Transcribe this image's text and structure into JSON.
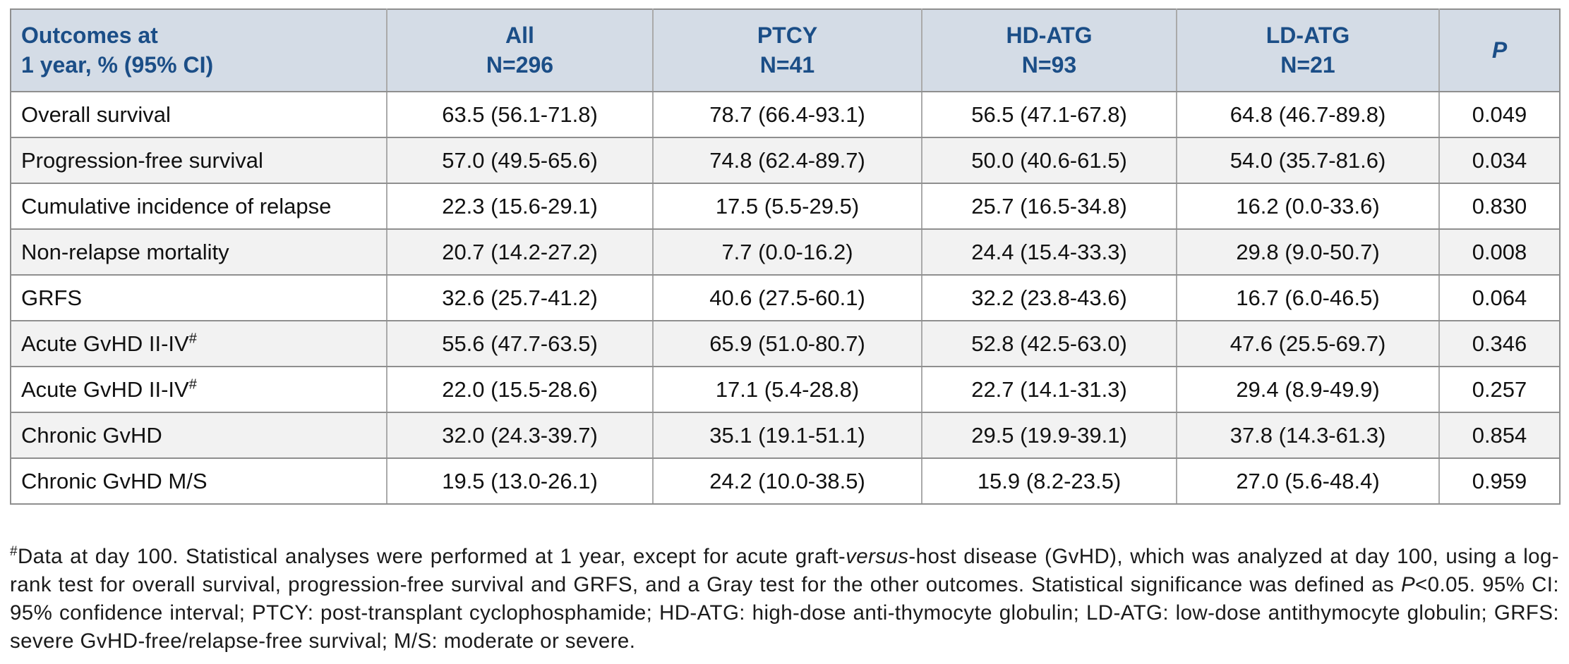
{
  "table": {
    "header": {
      "outcomes_line1": "Outcomes at",
      "outcomes_line2": "1 year, % (95% CI)",
      "cols": [
        {
          "label": "All",
          "n": "N=296"
        },
        {
          "label": "PTCY",
          "n": "N=41"
        },
        {
          "label": "HD-ATG",
          "n": "N=93"
        },
        {
          "label": "LD-ATG",
          "n": "N=21"
        }
      ],
      "p_label": "P"
    },
    "rows": [
      {
        "outcome": "Overall survival",
        "sup": "",
        "values": [
          "63.5 (56.1-71.8)",
          "78.7 (66.4-93.1)",
          "56.5 (47.1-67.8)",
          "64.8 (46.7-89.8)"
        ],
        "p": "0.049"
      },
      {
        "outcome": "Progression-free survival",
        "sup": "",
        "values": [
          "57.0 (49.5-65.6)",
          "74.8 (62.4-89.7)",
          "50.0 (40.6-61.5)",
          "54.0 (35.7-81.6)"
        ],
        "p": "0.034"
      },
      {
        "outcome": "Cumulative incidence of relapse",
        "sup": "",
        "values": [
          "22.3 (15.6-29.1)",
          "17.5 (5.5-29.5)",
          "25.7 (16.5-34.8)",
          "16.2 (0.0-33.6)"
        ],
        "p": "0.830"
      },
      {
        "outcome": "Non-relapse mortality",
        "sup": "",
        "values": [
          "20.7 (14.2-27.2)",
          "7.7 (0.0-16.2)",
          "24.4 (15.4-33.3)",
          "29.8 (9.0-50.7)"
        ],
        "p": "0.008"
      },
      {
        "outcome": "GRFS",
        "sup": "",
        "values": [
          "32.6 (25.7-41.2)",
          "40.6 (27.5-60.1)",
          "32.2 (23.8-43.6)",
          "16.7 (6.0-46.5)"
        ],
        "p": "0.064"
      },
      {
        "outcome": "Acute GvHD II-IV",
        "sup": "#",
        "values": [
          "55.6 (47.7-63.5)",
          "65.9 (51.0-80.7)",
          "52.8 (42.5-63.0)",
          "47.6 (25.5-69.7)"
        ],
        "p": "0.346"
      },
      {
        "outcome": "Acute GvHD II-IV",
        "sup": "#",
        "values": [
          "22.0 (15.5-28.6)",
          "17.1 (5.4-28.8)",
          "22.7 (14.1-31.3)",
          "29.4 (8.9-49.9)"
        ],
        "p": "0.257"
      },
      {
        "outcome": "Chronic GvHD",
        "sup": "",
        "values": [
          "32.0 (24.3-39.7)",
          "35.1 (19.1-51.1)",
          "29.5 (19.9-39.1)",
          "37.8 (14.3-61.3)"
        ],
        "p": "0.854"
      },
      {
        "outcome": "Chronic GvHD M/S",
        "sup": "",
        "values": [
          "19.5 (13.0-26.1)",
          "24.2 (10.0-38.5)",
          "15.9 (8.2-23.5)",
          "27.0 (5.6-48.4)"
        ],
        "p": "0.959"
      }
    ]
  },
  "footnote": {
    "segments": [
      {
        "text": "#",
        "sup": true
      },
      {
        "text": "Data at day 100. Statistical analyses were performed at 1 year, except for acute graft-"
      },
      {
        "text": "versus",
        "italic": true
      },
      {
        "text": "-host disease (GvHD), which was analyzed at day 100, using a log-rank test for overall survival, progression-free survival and GRFS, and a Gray test for the other outcomes. Statistical significance was defined as "
      },
      {
        "text": "P",
        "italic": true
      },
      {
        "text": "<0.05. 95% CI: 95% confidence interval; PTCY: post-transplant cyclophosphamide; HD-ATG: high-dose anti-thymocyte globulin; LD-ATG: low-dose antithymocyte globulin; GRFS: severe GvHD-free/relapse-free survival; M/S: moderate or severe."
      }
    ]
  },
  "colors": {
    "header_bg": "#d4dce6",
    "header_text": "#1b4e87",
    "row_alt_bg": "#f2f2f2",
    "border": "#8f8f8f"
  }
}
